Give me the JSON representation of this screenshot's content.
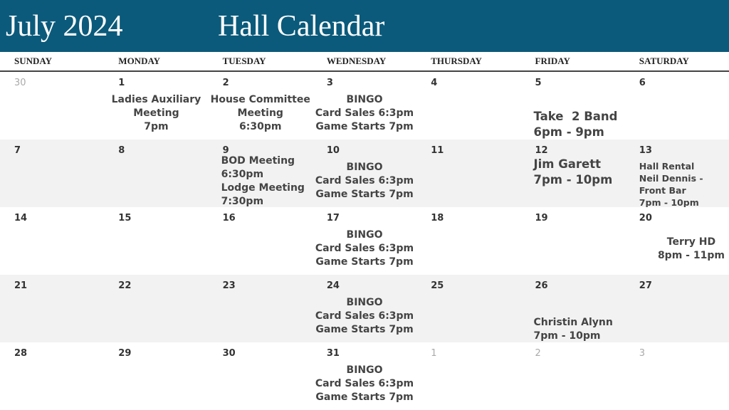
{
  "header": {
    "month": "July 2024",
    "title": "Hall Calendar"
  },
  "weekdays": [
    "SUNDAY",
    "MONDAY",
    "TUESDAY",
    "WEDNESDAY",
    "THURSDAY",
    "FRIDAY",
    "SATURDAY"
  ],
  "weeks": [
    [
      {
        "day": "30",
        "muted": true,
        "events": []
      },
      {
        "day": "1",
        "events": [
          "Ladies Auxiliary",
          "Meeting",
          "7pm"
        ]
      },
      {
        "day": "2",
        "events": [
          "House Committee",
          "Meeting",
          "6:30pm"
        ]
      },
      {
        "day": "3",
        "events": [
          "BINGO",
          "Card Sales 6:3pm",
          "Game Starts 7pm"
        ]
      },
      {
        "day": "4",
        "events": []
      },
      {
        "day": "5",
        "events": [
          "Take  2 Band",
          "6pm - 9pm"
        ]
      },
      {
        "day": "6",
        "events": []
      }
    ],
    [
      {
        "day": "7",
        "events": []
      },
      {
        "day": "8",
        "events": []
      },
      {
        "day": "9",
        "events": [
          "BOD Meeting",
          "6:30pm",
          "Lodge Meeting",
          "7:30pm"
        ]
      },
      {
        "day": "10",
        "events": [
          "BINGO",
          "Card Sales 6:3pm",
          "Game Starts 7pm"
        ]
      },
      {
        "day": "11",
        "events": []
      },
      {
        "day": "12",
        "events": [
          "Jim Garett",
          "7pm - 10pm"
        ]
      },
      {
        "day": "13",
        "events": [
          "Hall Rental",
          "Neil Dennis -",
          "Front Bar",
          "7pm - 10pm"
        ]
      }
    ],
    [
      {
        "day": "14",
        "events": []
      },
      {
        "day": "15",
        "events": []
      },
      {
        "day": "16",
        "events": []
      },
      {
        "day": "17",
        "events": [
          "BINGO",
          "Card Sales 6:3pm",
          "Game Starts 7pm"
        ]
      },
      {
        "day": "18",
        "events": []
      },
      {
        "day": "19",
        "events": []
      },
      {
        "day": "20",
        "events": [
          "Terry HD",
          "8pm - 11pm"
        ]
      }
    ],
    [
      {
        "day": "21",
        "events": []
      },
      {
        "day": "22",
        "events": []
      },
      {
        "day": "23",
        "events": []
      },
      {
        "day": "24",
        "events": [
          "BINGO",
          "Card Sales 6:3pm",
          "Game Starts 7pm"
        ]
      },
      {
        "day": "25",
        "events": []
      },
      {
        "day": "26",
        "events": [
          "Christin Alynn",
          "7pm - 10pm"
        ]
      },
      {
        "day": "27",
        "events": []
      }
    ],
    [
      {
        "day": "28",
        "events": []
      },
      {
        "day": "29",
        "events": []
      },
      {
        "day": "30",
        "events": []
      },
      {
        "day": "31",
        "events": [
          "BINGO",
          "Card Sales 6:3pm",
          "Game Starts 7pm"
        ]
      },
      {
        "day": "1",
        "muted": true,
        "events": []
      },
      {
        "day": "2",
        "muted": true,
        "events": []
      },
      {
        "day": "3",
        "muted": true,
        "events": []
      }
    ]
  ]
}
